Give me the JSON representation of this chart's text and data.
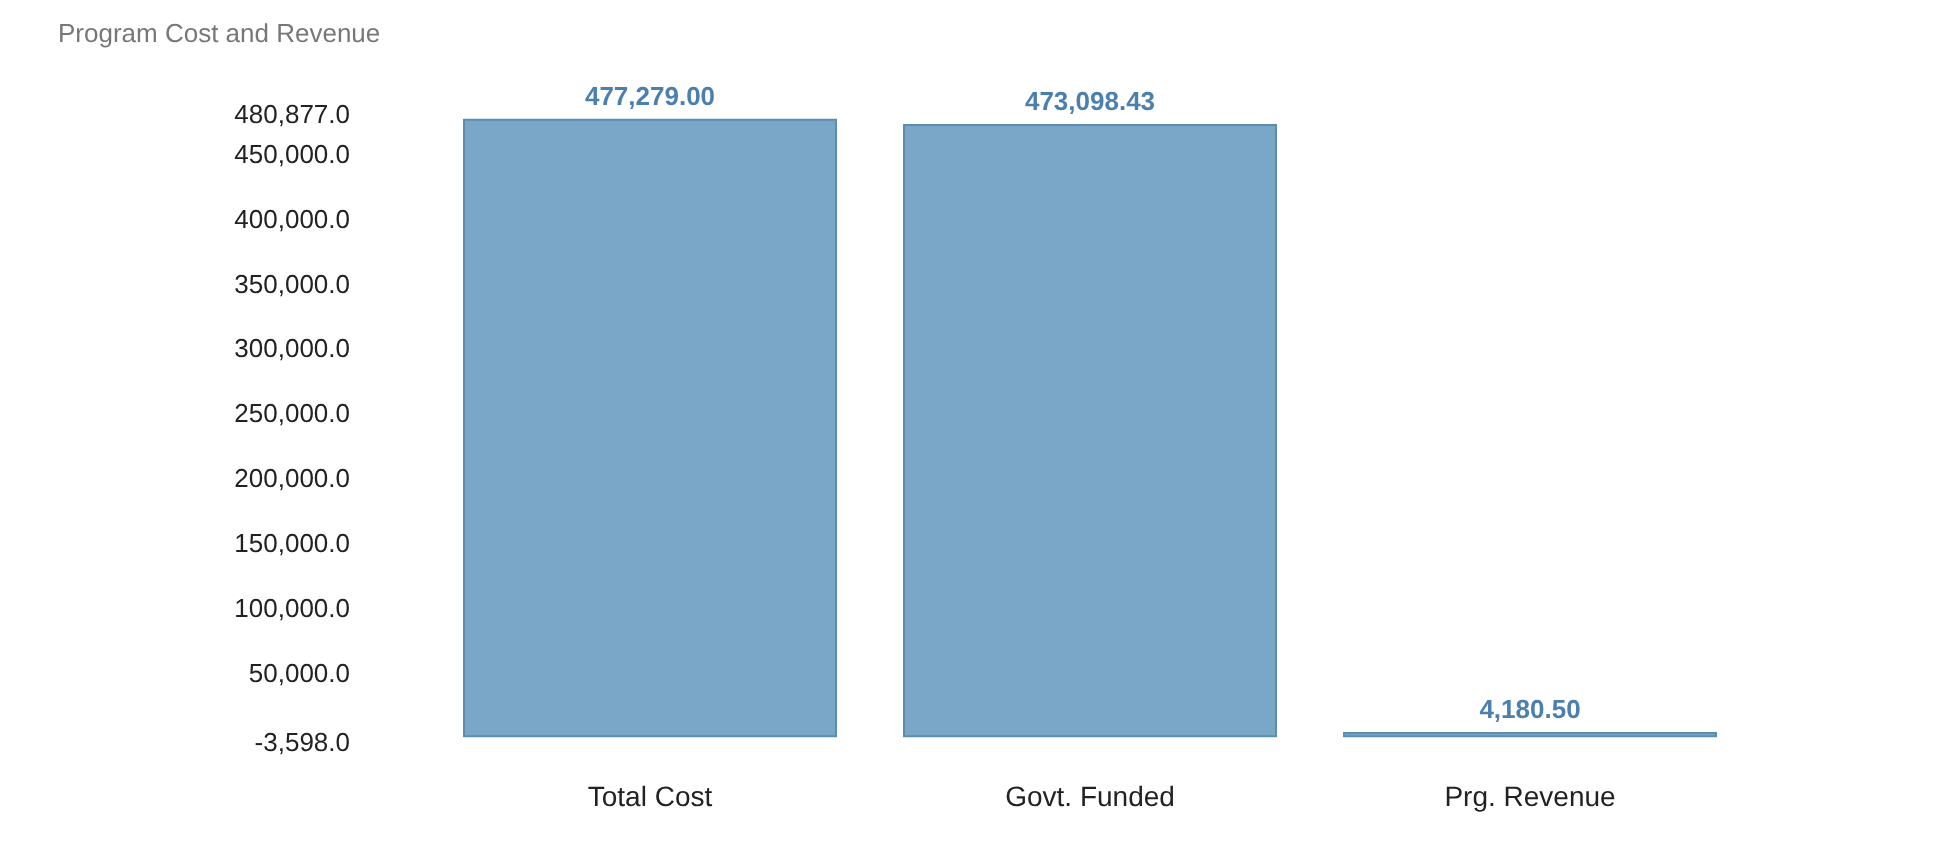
{
  "chart_data": {
    "type": "bar",
    "title": "Program Cost and Revenue",
    "categories": [
      "Total Cost",
      "Govt. Funded",
      "Prg. Revenue"
    ],
    "values": [
      477279.0,
      473098.43,
      4180.5
    ],
    "value_labels": [
      "477,279.00",
      "473,098.43",
      "4,180.50"
    ],
    "color": "#7aa7c7",
    "ylim": [
      -3598,
      480877
    ],
    "yticks": [
      {
        "value": -3598,
        "label": "-3,598.0"
      },
      {
        "value": 50000,
        "label": "50,000.0"
      },
      {
        "value": 100000,
        "label": "100,000.0"
      },
      {
        "value": 150000,
        "label": "150,000.0"
      },
      {
        "value": 200000,
        "label": "200,000.0"
      },
      {
        "value": 250000,
        "label": "250,000.0"
      },
      {
        "value": 300000,
        "label": "300,000.0"
      },
      {
        "value": 350000,
        "label": "350,000.0"
      },
      {
        "value": 400000,
        "label": "400,000.0"
      },
      {
        "value": 450000,
        "label": "450,000.0"
      },
      {
        "value": 480877,
        "label": "480,877.0"
      }
    ],
    "grid": false
  }
}
